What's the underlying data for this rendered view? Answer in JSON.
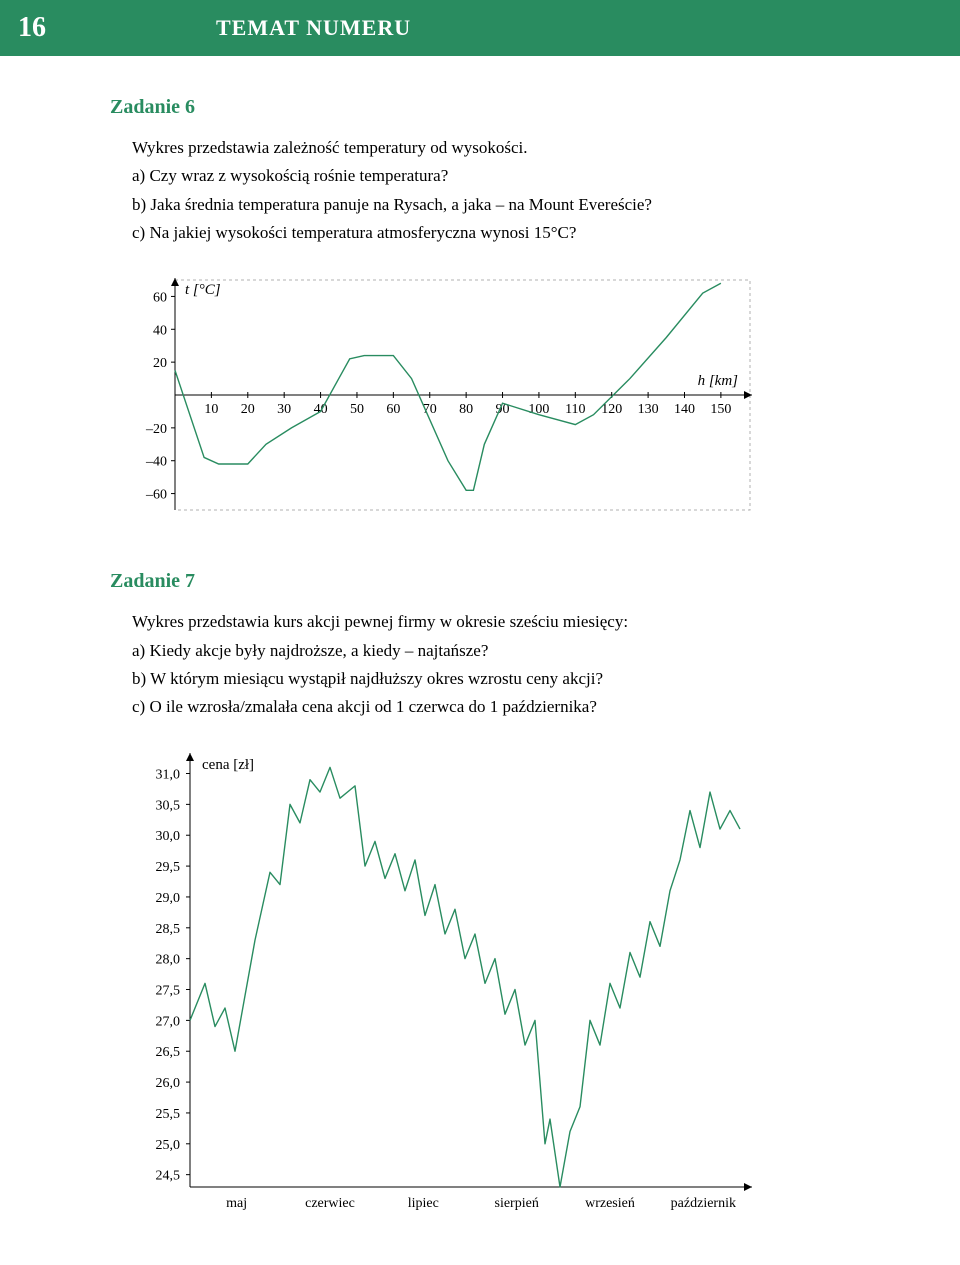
{
  "header": {
    "page_number": "16",
    "title": "TEMAT NUMERU"
  },
  "task6": {
    "heading": "Zadanie 6",
    "intro": "Wykres przedstawia zależność temperatury od wysokości.",
    "q_a": "a) Czy wraz z wysokością rośnie temperatura?",
    "q_b": "b) Jaka średnia temperatura panuje na Rysach, a jaka – na Mount Evereście?",
    "q_c": "c) Na jakiej wysokości temperatura atmosferyczna wynosi 15°C?",
    "chart": {
      "type": "line",
      "y_label": "t [°C]",
      "x_label": "h [km]",
      "y_ticks": [
        60,
        40,
        20,
        -20,
        -40,
        -60
      ],
      "x_ticks": [
        10,
        20,
        30,
        40,
        50,
        60,
        70,
        80,
        90,
        100,
        110,
        120,
        130,
        140,
        150
      ],
      "ylim": [
        -70,
        70
      ],
      "xlim": [
        0,
        158
      ],
      "line_color": "#298c60",
      "axis_color": "#000000",
      "border_color": "#b0b0b0",
      "background": "#ffffff",
      "line_width": 1.4,
      "tick_fontsize": 14,
      "label_fontsize": 15,
      "points": [
        [
          0,
          15
        ],
        [
          8,
          -38
        ],
        [
          12,
          -42
        ],
        [
          20,
          -42
        ],
        [
          25,
          -30
        ],
        [
          32,
          -20
        ],
        [
          40,
          -10
        ],
        [
          45,
          10
        ],
        [
          48,
          22
        ],
        [
          52,
          24
        ],
        [
          60,
          24
        ],
        [
          65,
          10
        ],
        [
          75,
          -40
        ],
        [
          80,
          -58
        ],
        [
          82,
          -58
        ],
        [
          85,
          -30
        ],
        [
          90,
          -5
        ],
        [
          100,
          -12
        ],
        [
          110,
          -18
        ],
        [
          115,
          -12
        ],
        [
          125,
          10
        ],
        [
          135,
          35
        ],
        [
          145,
          62
        ],
        [
          150,
          68
        ]
      ]
    }
  },
  "task7": {
    "heading": "Zadanie 7",
    "intro": "Wykres przedstawia kurs akcji pewnej firmy w okresie sześciu miesięcy:",
    "q_a": "a) Kiedy akcje były najdroższe, a kiedy – najtańsze?",
    "q_b": "b) W którym miesiącu wystąpił najdłuższy okres wzrostu ceny akcji?",
    "q_c": "c) O ile wzrosła/zmalała cena akcji od 1 czerwca do 1 października?",
    "chart": {
      "type": "line",
      "y_label": "cena [zł]",
      "y_ticks": [
        "31,0",
        "30,5",
        "30,0",
        "29,5",
        "29,0",
        "28,5",
        "28,0",
        "27,5",
        "27,0",
        "26,5",
        "26,0",
        "25,5",
        "25,0",
        "24,5"
      ],
      "y_tick_values": [
        31.0,
        30.5,
        30.0,
        29.5,
        29.0,
        28.5,
        28.0,
        27.5,
        27.0,
        26.5,
        26.0,
        25.5,
        25.0,
        24.5
      ],
      "x_ticks": [
        "maj",
        "czerwiec",
        "lipiec",
        "sierpień",
        "wrzesień",
        "październik"
      ],
      "ylim": [
        24.3,
        31.3
      ],
      "line_color": "#298c60",
      "axis_color": "#000000",
      "background": "#ffffff",
      "line_width": 1.4,
      "tick_fontsize": 14,
      "label_fontsize": 15,
      "points": [
        [
          0,
          27.0
        ],
        [
          3,
          27.6
        ],
        [
          5,
          26.9
        ],
        [
          7,
          27.2
        ],
        [
          9,
          26.5
        ],
        [
          11,
          27.4
        ],
        [
          13,
          28.3
        ],
        [
          16,
          29.4
        ],
        [
          18,
          29.2
        ],
        [
          20,
          30.5
        ],
        [
          22,
          30.2
        ],
        [
          24,
          30.9
        ],
        [
          26,
          30.7
        ],
        [
          28,
          31.1
        ],
        [
          30,
          30.6
        ],
        [
          33,
          30.8
        ],
        [
          35,
          29.5
        ],
        [
          37,
          29.9
        ],
        [
          39,
          29.3
        ],
        [
          41,
          29.7
        ],
        [
          43,
          29.1
        ],
        [
          45,
          29.6
        ],
        [
          47,
          28.7
        ],
        [
          49,
          29.2
        ],
        [
          51,
          28.4
        ],
        [
          53,
          28.8
        ],
        [
          55,
          28.0
        ],
        [
          57,
          28.4
        ],
        [
          59,
          27.6
        ],
        [
          61,
          28.0
        ],
        [
          63,
          27.1
        ],
        [
          65,
          27.5
        ],
        [
          67,
          26.6
        ],
        [
          69,
          27.0
        ],
        [
          71,
          25.0
        ],
        [
          72,
          25.4
        ],
        [
          74,
          24.3
        ],
        [
          76,
          25.2
        ],
        [
          78,
          25.6
        ],
        [
          80,
          27.0
        ],
        [
          82,
          26.6
        ],
        [
          84,
          27.6
        ],
        [
          86,
          27.2
        ],
        [
          88,
          28.1
        ],
        [
          90,
          27.7
        ],
        [
          92,
          28.6
        ],
        [
          94,
          28.2
        ],
        [
          96,
          29.1
        ],
        [
          98,
          29.6
        ],
        [
          100,
          30.4
        ],
        [
          102,
          29.8
        ],
        [
          104,
          30.7
        ],
        [
          106,
          30.1
        ],
        [
          108,
          30.4
        ],
        [
          110,
          30.1
        ]
      ]
    }
  }
}
